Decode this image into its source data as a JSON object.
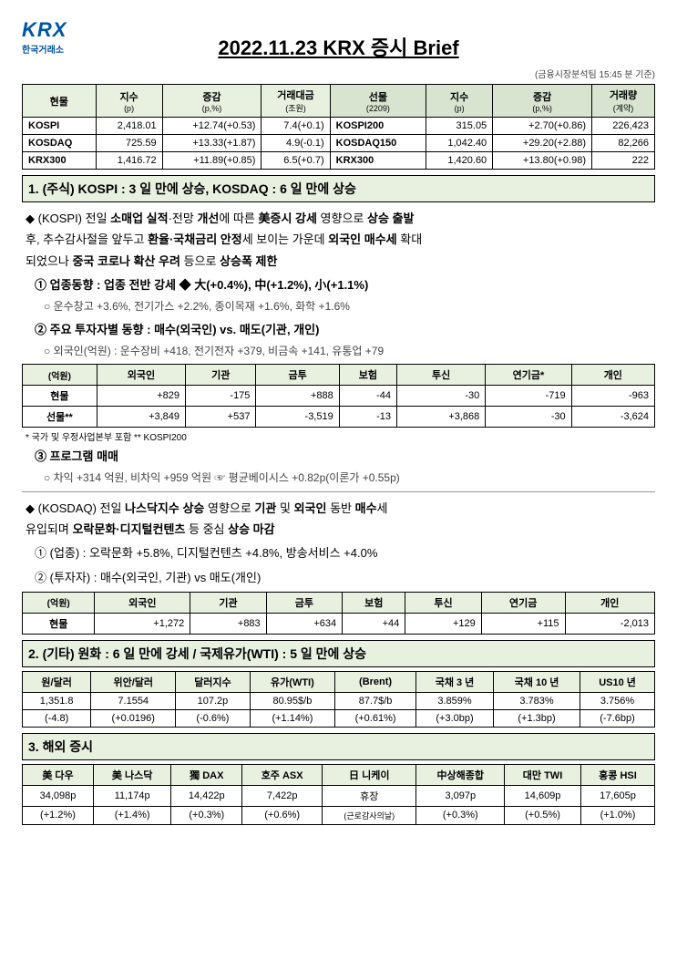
{
  "header": {
    "logo": "KRX",
    "logo_sub": "한국거래소",
    "title": "2022.11.23  KRX 증시 Brief",
    "meta": "(금융시장분석팀 15:45 분 기준)"
  },
  "top_table": {
    "cols_spot": {
      "name": "현물",
      "c1": "지수",
      "c1s": "(p)",
      "c2": "증감",
      "c2s": "(p,%)",
      "c3": "거래대금",
      "c3s": "(조원)"
    },
    "cols_fut": {
      "name": "선물",
      "name_s": "(2209)",
      "c1": "지수",
      "c1s": "(p)",
      "c2": "증감",
      "c2s": "(p,%)",
      "c3": "거래량",
      "c3s": "(계약)"
    },
    "rows": [
      {
        "s": "KOSPI",
        "sp": "2,418.01",
        "sc": "+12.74(+0.53)",
        "sv": "7.4(+0.1)",
        "f": "KOSPI200",
        "fp": "315.05",
        "fc": "+2.70(+0.86)",
        "fv": "226,423"
      },
      {
        "s": "KOSDAQ",
        "sp": "725.59",
        "sc": "+13.33(+1.87)",
        "sv": "4.9(-0.1)",
        "f": "KOSDAQ150",
        "fp": "1,042.40",
        "fc": "+29.20(+2.88)",
        "fv": "82,266"
      },
      {
        "s": "KRX300",
        "sp": "1,416.72",
        "sc": "+11.89(+0.85)",
        "sv": "6.5(+0.7)",
        "f": "KRX300",
        "fp": "1,420.60",
        "fc": "+13.80(+0.98)",
        "fv": "222"
      }
    ]
  },
  "sec1": {
    "h": "1. (주식) KOSPI : 3 일  만에  상승, KOSDAQ : 6 일  만에  상승",
    "p1_a": "◆  (KOSPI)  전일 ",
    "p1_b": "소매업  실적",
    "p1_c": "·전망 ",
    "p1_d": "개선",
    "p1_e": "에  따른 ",
    "p1_f": "美증시  강세",
    "p1_g": "  영향으로 ",
    "p1_h": "상승  출발",
    "p2_a": "후,  추수감사절을  앞두고 ",
    "p2_b": "환율·국채금리  안정",
    "p2_c": "세  보이는  가운데 ",
    "p2_d": "외국인  매수세",
    "p2_e": "  확대",
    "p3_a": "되었으나 ",
    "p3_b": "중국  코로나  확산  우려",
    "p3_c": "  등으로 ",
    "p3_d": "상승폭  제한",
    "s1": "①  업종동향 : 업종  전반  강세    ◆ 大(+0.4%), 中(+1.2%), 小(+1.1%)",
    "s1c": "○  운수창고 +3.6%,  전기가스 +2.2%,  종이목재 +1.6%,  화학 +1.6%",
    "s2": "②  주요  투자자별  동향 : 매수(외국인) vs. 매도(기관, 개인)",
    "s2c": "○  외국인(억원) : 운수장비 +418,  전기전자 +379,  비금속 +141,  유통업 +79"
  },
  "inv_table": {
    "unit": "(억원)",
    "cols": [
      "외국인",
      "기관",
      "금투",
      "보험",
      "투신",
      "연기금*",
      "개인"
    ],
    "rows": [
      {
        "n": "현물",
        "v": [
          "+829",
          "-175",
          "+888",
          "-44",
          "-30",
          "-719",
          "-963"
        ]
      },
      {
        "n": "선물**",
        "v": [
          "+3,849",
          "+537",
          "-3,519",
          "-13",
          "+3,868",
          "-30",
          "-3,624"
        ]
      }
    ],
    "foot": "* 국가 및 우정사업본부 포함   ** KOSPI200"
  },
  "prog": {
    "h": "③  프로그램  매매",
    "c": "○  차익 +314 억원,  비차익 +959 억원  ☞  평균베이시스 +0.82p(이론가 +0.55p)"
  },
  "kosdaq": {
    "p1_a": "◆  (KOSDAQ)  전일 ",
    "p1_b": "나스닥지수  상승",
    "p1_c": "  영향으로 ",
    "p1_d": "기관",
    "p1_e": "  및 ",
    "p1_f": "외국인",
    "p1_g": "  동반 ",
    "p1_h": "매수",
    "p1_i": "세",
    "p2_a": "유입되며 ",
    "p2_b": "오락문화·디지털컨텐츠",
    "p2_c": "  등  중심 ",
    "p2_d": "상승  마감",
    "s1": "①  (업종) : 오락문화 +5.8%,  디지털컨텐츠 +4.8%,  방송서비스 +4.0%",
    "s2": "②  (투자자) : 매수(외국인, 기관) vs  매도(개인)"
  },
  "inv2": {
    "unit": "(억원)",
    "cols": [
      "외국인",
      "기관",
      "금투",
      "보험",
      "투신",
      "연기금",
      "개인"
    ],
    "row": {
      "n": "현물",
      "v": [
        "+1,272",
        "+883",
        "+634",
        "+44",
        "+129",
        "+115",
        "-2,013"
      ]
    }
  },
  "sec2": {
    "h": "2. (기타)  원화 : 6 일  만에  강세  /  국제유가(WTI) : 5 일  만에  상승",
    "cols": [
      "원/달러",
      "위안/달러",
      "달러지수",
      "유가(WTI)",
      "(Brent)",
      "국채 3 년",
      "국채 10 년",
      "US10 년"
    ],
    "r1": [
      "1,351.8",
      "7.1554",
      "107.2p",
      "80.95$/b",
      "87.7$/b",
      "3.859%",
      "3.783%",
      "3.756%"
    ],
    "r2": [
      "(-4.8)",
      "(+0.0196)",
      "(-0.6%)",
      "(+1.14%)",
      "(+0.61%)",
      "(+3.0bp)",
      "(+1.3bp)",
      "(-7.6bp)"
    ]
  },
  "sec3": {
    "h": "3. 해외  증시",
    "cols": [
      "美 다우",
      "美 나스닥",
      "獨 DAX",
      "호주 ASX",
      "日 니케이",
      "中상해종합",
      "대만 TWI",
      "홍콩 HSI"
    ],
    "r1": [
      "34,098p",
      "11,174p",
      "14,422p",
      "7,422p",
      "휴장",
      "3,097p",
      "14,609p",
      "17,605p"
    ],
    "r2": [
      "(+1.2%)",
      "(+1.4%)",
      "(+0.3%)",
      "(+0.6%)",
      "(근로감사의날)",
      "(+0.3%)",
      "(+0.5%)",
      "(+1.0%)"
    ]
  }
}
